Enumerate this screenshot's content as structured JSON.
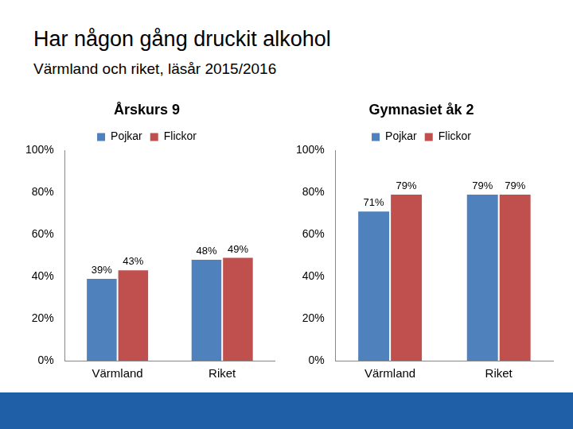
{
  "header": {
    "title": "Har någon gång druckit alkohol",
    "subtitle": "Värmland och riket, läsår 2015/2016"
  },
  "chart_data": [
    {
      "type": "bar",
      "title": "Årskurs 9",
      "categories": [
        "Värmland",
        "Riket"
      ],
      "series": [
        {
          "name": "Pojkar",
          "color": "#4f81bd",
          "values": [
            39,
            48
          ],
          "value_labels": [
            "39%",
            "48%"
          ]
        },
        {
          "name": "Flickor",
          "color": "#c0504d",
          "values": [
            43,
            49
          ],
          "value_labels": [
            "43%",
            "49%"
          ]
        }
      ],
      "ylim": [
        0,
        100
      ],
      "yticks": [
        {
          "value": 0,
          "label": "0%"
        },
        {
          "value": 20,
          "label": "20%"
        },
        {
          "value": 40,
          "label": "40%"
        },
        {
          "value": 60,
          "label": "60%"
        },
        {
          "value": 80,
          "label": "80%"
        },
        {
          "value": 100,
          "label": "100%"
        }
      ],
      "grid": false,
      "legend": "top",
      "data_labels": true
    },
    {
      "type": "bar",
      "title": "Gymnasiet åk 2",
      "categories": [
        "Värmland",
        "Riket"
      ],
      "series": [
        {
          "name": "Pojkar",
          "color": "#4f81bd",
          "values": [
            71,
            79
          ],
          "value_labels": [
            "71%",
            "79%"
          ]
        },
        {
          "name": "Flickor",
          "color": "#c0504d",
          "values": [
            79,
            79
          ],
          "value_labels": [
            "79%",
            "79%"
          ]
        }
      ],
      "ylim": [
        0,
        100
      ],
      "yticks": [
        {
          "value": 0,
          "label": "0%"
        },
        {
          "value": 20,
          "label": "20%"
        },
        {
          "value": 40,
          "label": "40%"
        },
        {
          "value": 60,
          "label": "60%"
        },
        {
          "value": 80,
          "label": "80%"
        },
        {
          "value": 100,
          "label": "100%"
        }
      ],
      "grid": false,
      "legend": "top",
      "data_labels": true
    }
  ]
}
